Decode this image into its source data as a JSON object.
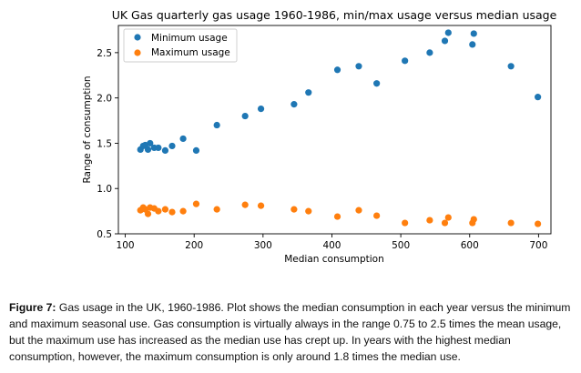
{
  "chart_data": {
    "type": "scatter",
    "title": "UK Gas quarterly gas usage 1960-1986, min/max usage versus median usage",
    "xlabel": "Median consumption",
    "ylabel": "Range of consumption",
    "xlim": [
      90,
      718
    ],
    "ylim": [
      0.5,
      2.8
    ],
    "xticks": [
      100,
      200,
      300,
      400,
      500,
      600,
      700
    ],
    "yticks": [
      0.5,
      1.0,
      1.5,
      2.0,
      2.5
    ],
    "xtick_labels": [
      "100",
      "200",
      "300",
      "400",
      "500",
      "600",
      "700"
    ],
    "ytick_labels": [
      "0.5",
      "1.0",
      "1.5",
      "2.0",
      "2.5"
    ],
    "grid": false,
    "legend_position": "top-left",
    "series": [
      {
        "name": "Minimum usage",
        "color": "#1f77b4",
        "points": [
          [
            122,
            1.43
          ],
          [
            126,
            1.47
          ],
          [
            129,
            1.48
          ],
          [
            133,
            1.43
          ],
          [
            136,
            1.5
          ],
          [
            142,
            1.45
          ],
          [
            148,
            1.45
          ],
          [
            158,
            1.42
          ],
          [
            168,
            1.47
          ],
          [
            184,
            1.55
          ],
          [
            203,
            1.42
          ],
          [
            233,
            1.7
          ],
          [
            274,
            1.8
          ],
          [
            297,
            1.88
          ],
          [
            345,
            1.93
          ],
          [
            366,
            2.06
          ],
          [
            408,
            2.31
          ],
          [
            439,
            2.35
          ],
          [
            465,
            2.16
          ],
          [
            506,
            2.41
          ],
          [
            542,
            2.5
          ],
          [
            564,
            2.63
          ],
          [
            569,
            2.72
          ],
          [
            604,
            2.59
          ],
          [
            606,
            2.71
          ],
          [
            660,
            2.35
          ],
          [
            699,
            2.01
          ]
        ]
      },
      {
        "name": "Maximum usage",
        "color": "#ff7f0e",
        "points": [
          [
            122,
            0.76
          ],
          [
            126,
            0.79
          ],
          [
            129,
            0.77
          ],
          [
            133,
            0.72
          ],
          [
            136,
            0.79
          ],
          [
            142,
            0.78
          ],
          [
            148,
            0.75
          ],
          [
            158,
            0.77
          ],
          [
            168,
            0.74
          ],
          [
            184,
            0.75
          ],
          [
            203,
            0.83
          ],
          [
            233,
            0.77
          ],
          [
            274,
            0.82
          ],
          [
            297,
            0.81
          ],
          [
            345,
            0.77
          ],
          [
            366,
            0.75
          ],
          [
            408,
            0.69
          ],
          [
            439,
            0.76
          ],
          [
            465,
            0.7
          ],
          [
            506,
            0.62
          ],
          [
            542,
            0.65
          ],
          [
            564,
            0.62
          ],
          [
            569,
            0.68
          ],
          [
            604,
            0.62
          ],
          [
            606,
            0.66
          ],
          [
            660,
            0.62
          ],
          [
            699,
            0.61
          ]
        ]
      }
    ]
  },
  "caption": {
    "label": "Figure 7:",
    "text": " Gas usage in the UK, 1960-1986. Plot shows the median consumption in each year versus the minimum and maximum seasonal use. Gas consumption is virtually always in the range 0.75 to 2.5 times the mean usage, but the maximum use has increased as the median use has crept up. In years with the highest median consumption, however, the maximum consumption is only around 1.8 times the median use."
  }
}
